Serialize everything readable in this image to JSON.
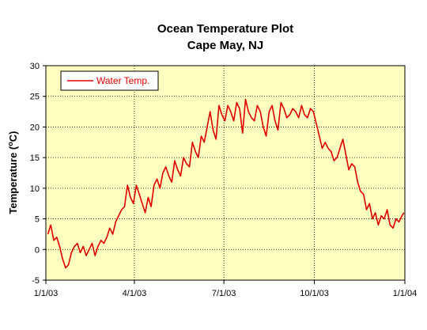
{
  "chart_data": {
    "type": "line",
    "title": "Ocean Temperature Plot",
    "subtitle": "Cape May, NJ",
    "xlabel": "",
    "ylabel_text": "Temperature (",
    "ylabel_unit": "o",
    "ylabel_tail": "C)",
    "ylim": [
      -5,
      30
    ],
    "yticks": [
      -5,
      0,
      5,
      10,
      15,
      20,
      25,
      30
    ],
    "xlim": [
      "2003-01-01",
      "2004-01-01"
    ],
    "xticks": [
      {
        "date": "2003-01-01",
        "label": "1/1/03"
      },
      {
        "date": "2003-04-01",
        "label": "4/1/03"
      },
      {
        "date": "2003-07-01",
        "label": "7/1/03"
      },
      {
        "date": "2003-10-01",
        "label": "10/1/03"
      },
      {
        "date": "2004-01-01",
        "label": "1/1/04"
      }
    ],
    "grid": true,
    "legend_position": "top-left",
    "plot_background": "#ffffc0",
    "series": [
      {
        "name": "Water Temp.",
        "color": "#e00000",
        "x": [
          "2003-01-03",
          "2003-01-06",
          "2003-01-09",
          "2003-01-12",
          "2003-01-15",
          "2003-01-18",
          "2003-01-21",
          "2003-01-24",
          "2003-01-27",
          "2003-01-30",
          "2003-02-02",
          "2003-02-05",
          "2003-02-08",
          "2003-02-11",
          "2003-02-14",
          "2003-02-17",
          "2003-02-20",
          "2003-02-23",
          "2003-02-26",
          "2003-03-01",
          "2003-03-04",
          "2003-03-07",
          "2003-03-10",
          "2003-03-13",
          "2003-03-16",
          "2003-03-19",
          "2003-03-22",
          "2003-03-25",
          "2003-03-28",
          "2003-03-31",
          "2003-04-03",
          "2003-04-06",
          "2003-04-09",
          "2003-04-12",
          "2003-04-15",
          "2003-04-18",
          "2003-04-21",
          "2003-04-24",
          "2003-04-27",
          "2003-04-30",
          "2003-05-03",
          "2003-05-06",
          "2003-05-09",
          "2003-05-12",
          "2003-05-15",
          "2003-05-18",
          "2003-05-21",
          "2003-05-24",
          "2003-05-27",
          "2003-05-30",
          "2003-06-02",
          "2003-06-05",
          "2003-06-08",
          "2003-06-11",
          "2003-06-14",
          "2003-06-17",
          "2003-06-20",
          "2003-06-23",
          "2003-06-26",
          "2003-06-29",
          "2003-07-02",
          "2003-07-05",
          "2003-07-08",
          "2003-07-11",
          "2003-07-14",
          "2003-07-17",
          "2003-07-20",
          "2003-07-23",
          "2003-07-26",
          "2003-07-29",
          "2003-08-01",
          "2003-08-04",
          "2003-08-07",
          "2003-08-10",
          "2003-08-13",
          "2003-08-16",
          "2003-08-19",
          "2003-08-22",
          "2003-08-25",
          "2003-08-28",
          "2003-08-31",
          "2003-09-03",
          "2003-09-06",
          "2003-09-09",
          "2003-09-12",
          "2003-09-15",
          "2003-09-18",
          "2003-09-21",
          "2003-09-24",
          "2003-09-27",
          "2003-09-30",
          "2003-10-03",
          "2003-10-06",
          "2003-10-09",
          "2003-10-12",
          "2003-10-15",
          "2003-10-18",
          "2003-10-21",
          "2003-10-24",
          "2003-10-27",
          "2003-10-30",
          "2003-11-02",
          "2003-11-05",
          "2003-11-08",
          "2003-11-11",
          "2003-11-14",
          "2003-11-17",
          "2003-11-20",
          "2003-11-23",
          "2003-11-26",
          "2003-11-29",
          "2003-12-02",
          "2003-12-05",
          "2003-12-08",
          "2003-12-11",
          "2003-12-14",
          "2003-12-17",
          "2003-12-20",
          "2003-12-23",
          "2003-12-26",
          "2003-12-29",
          "2003-12-31"
        ],
        "values": [
          2.5,
          4.0,
          1.5,
          2.0,
          0.5,
          -1.5,
          -3.0,
          -2.5,
          -0.5,
          0.5,
          1.0,
          -0.5,
          0.5,
          -1.0,
          0.0,
          1.0,
          -1.0,
          0.5,
          1.5,
          1.0,
          2.0,
          3.5,
          2.5,
          4.5,
          5.5,
          6.5,
          7.0,
          10.5,
          8.5,
          7.5,
          10.5,
          9.0,
          7.5,
          6.0,
          8.5,
          7.0,
          10.5,
          11.5,
          10.0,
          12.5,
          13.5,
          12.0,
          11.0,
          14.5,
          13.0,
          12.0,
          15.0,
          14.0,
          13.5,
          17.5,
          16.0,
          15.0,
          18.5,
          17.5,
          20.0,
          22.5,
          19.5,
          18.0,
          23.5,
          22.0,
          21.0,
          23.5,
          22.5,
          21.0,
          24.0,
          23.0,
          19.0,
          24.5,
          22.5,
          21.5,
          21.0,
          23.5,
          22.5,
          20.0,
          18.5,
          22.5,
          23.5,
          21.0,
          19.5,
          24.0,
          23.0,
          21.5,
          22.0,
          23.0,
          22.5,
          21.5,
          23.5,
          22.0,
          21.5,
          23.0,
          22.5,
          20.5,
          18.5,
          16.5,
          17.5,
          16.5,
          16.0,
          14.5,
          15.0,
          16.5,
          18.0,
          15.5,
          13.0,
          14.0,
          13.5,
          11.0,
          9.5,
          9.0,
          6.5,
          7.5,
          5.0,
          6.0,
          4.0,
          5.5,
          5.0,
          6.5,
          4.0,
          3.5,
          5.0,
          4.5,
          5.5,
          6.0
        ]
      }
    ]
  }
}
